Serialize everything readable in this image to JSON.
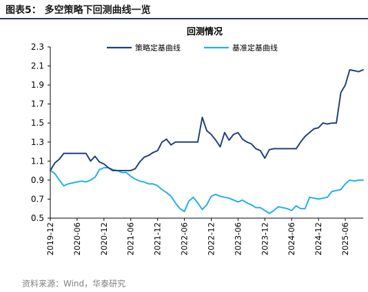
{
  "figure": {
    "title": "图表5： 多空策略下回测曲线一览",
    "source": "资料来源：Wind，华泰研究"
  },
  "colors": {
    "strategy": "#1f3e7a",
    "benchmark": "#1fb0ea",
    "rule": "#1f3864",
    "axis": "#000000"
  },
  "chart_data": {
    "type": "line",
    "title": "回测情况",
    "xlabel": "",
    "ylabel": "",
    "ylim": [
      0.5,
      2.3
    ],
    "yticks": [
      "0.5",
      "0.7",
      "0.9",
      "1.1",
      "1.3",
      "1.5",
      "1.7",
      "1.9",
      "2.1",
      "2.3"
    ],
    "xlim": [
      "2019-12",
      "2025-10"
    ],
    "xticks": [
      "2019-12",
      "2020-06",
      "2020-12",
      "2021-06",
      "2021-12",
      "2022-06",
      "2022-12",
      "2023-06",
      "2023-12",
      "2024-06",
      "2024-12",
      "2025-06"
    ],
    "grid": false,
    "legend_position": "top",
    "series": [
      {
        "name": "策略定基曲线",
        "x": [
          "2019-12",
          "2020-01",
          "2020-02",
          "2020-03",
          "2020-04",
          "2020-05",
          "2020-06",
          "2020-07",
          "2020-08",
          "2020-09",
          "2020-10",
          "2020-11",
          "2020-12",
          "2021-01",
          "2021-02",
          "2021-03",
          "2021-04",
          "2021-05",
          "2021-06",
          "2021-07",
          "2021-08",
          "2021-09",
          "2021-10",
          "2021-11",
          "2021-12",
          "2022-01",
          "2022-02",
          "2022-03",
          "2022-04",
          "2022-05",
          "2022-06",
          "2022-07",
          "2022-08",
          "2022-09",
          "2022-10",
          "2022-11",
          "2022-12",
          "2023-01",
          "2023-02",
          "2023-03",
          "2023-04",
          "2023-05",
          "2023-06",
          "2023-07",
          "2023-08",
          "2023-09",
          "2023-10",
          "2023-11",
          "2023-12",
          "2024-01",
          "2024-02",
          "2024-03",
          "2024-04",
          "2024-05",
          "2024-06",
          "2024-07",
          "2024-08",
          "2024-09",
          "2024-10",
          "2024-11",
          "2024-12",
          "2025-01",
          "2025-02",
          "2025-03",
          "2025-04",
          "2025-05",
          "2025-06",
          "2025-07",
          "2025-08",
          "2025-09",
          "2025-10"
        ],
        "values": [
          1.0,
          1.08,
          1.12,
          1.18,
          1.18,
          1.18,
          1.18,
          1.18,
          1.18,
          1.1,
          1.15,
          1.09,
          1.07,
          1.03,
          1.0,
          1.0,
          1.0,
          1.0,
          1.0,
          1.02,
          1.09,
          1.14,
          1.16,
          1.19,
          1.21,
          1.3,
          1.33,
          1.27,
          1.3,
          1.3,
          1.3,
          1.3,
          1.3,
          1.3,
          1.56,
          1.42,
          1.38,
          1.32,
          1.25,
          1.4,
          1.32,
          1.38,
          1.4,
          1.33,
          1.3,
          1.28,
          1.23,
          1.21,
          1.13,
          1.22,
          1.23,
          1.23,
          1.23,
          1.23,
          1.23,
          1.23,
          1.3,
          1.36,
          1.4,
          1.44,
          1.45,
          1.5,
          1.49,
          1.5,
          1.5,
          1.82,
          1.9,
          2.06,
          2.05,
          2.04,
          2.06
        ]
      },
      {
        "name": "基准定基曲线",
        "x": [
          "2019-12",
          "2020-01",
          "2020-02",
          "2020-03",
          "2020-04",
          "2020-05",
          "2020-06",
          "2020-07",
          "2020-08",
          "2020-09",
          "2020-10",
          "2020-11",
          "2020-12",
          "2021-01",
          "2021-02",
          "2021-03",
          "2021-04",
          "2021-05",
          "2021-06",
          "2021-07",
          "2021-08",
          "2021-09",
          "2021-10",
          "2021-11",
          "2021-12",
          "2022-01",
          "2022-02",
          "2022-03",
          "2022-04",
          "2022-05",
          "2022-06",
          "2022-07",
          "2022-08",
          "2022-09",
          "2022-10",
          "2022-11",
          "2022-12",
          "2023-01",
          "2023-02",
          "2023-03",
          "2023-04",
          "2023-05",
          "2023-06",
          "2023-07",
          "2023-08",
          "2023-09",
          "2023-10",
          "2023-11",
          "2023-12",
          "2024-01",
          "2024-02",
          "2024-03",
          "2024-04",
          "2024-05",
          "2024-06",
          "2024-07",
          "2024-08",
          "2024-09",
          "2024-10",
          "2024-11",
          "2024-12",
          "2025-01",
          "2025-02",
          "2025-03",
          "2025-04",
          "2025-05",
          "2025-06",
          "2025-07",
          "2025-08",
          "2025-09",
          "2025-10"
        ],
        "values": [
          1.0,
          0.97,
          0.9,
          0.84,
          0.86,
          0.87,
          0.88,
          0.89,
          0.88,
          0.9,
          0.93,
          1.01,
          1.03,
          1.03,
          1.01,
          1.0,
          0.98,
          0.98,
          0.94,
          0.91,
          0.89,
          0.88,
          0.86,
          0.86,
          0.84,
          0.8,
          0.77,
          0.73,
          0.66,
          0.6,
          0.57,
          0.68,
          0.72,
          0.66,
          0.59,
          0.64,
          0.73,
          0.75,
          0.73,
          0.72,
          0.71,
          0.69,
          0.67,
          0.69,
          0.66,
          0.64,
          0.61,
          0.61,
          0.58,
          0.55,
          0.58,
          0.62,
          0.61,
          0.6,
          0.58,
          0.63,
          0.6,
          0.6,
          0.72,
          0.71,
          0.7,
          0.71,
          0.72,
          0.78,
          0.79,
          0.8,
          0.86,
          0.9,
          0.89,
          0.9,
          0.9
        ]
      }
    ]
  }
}
